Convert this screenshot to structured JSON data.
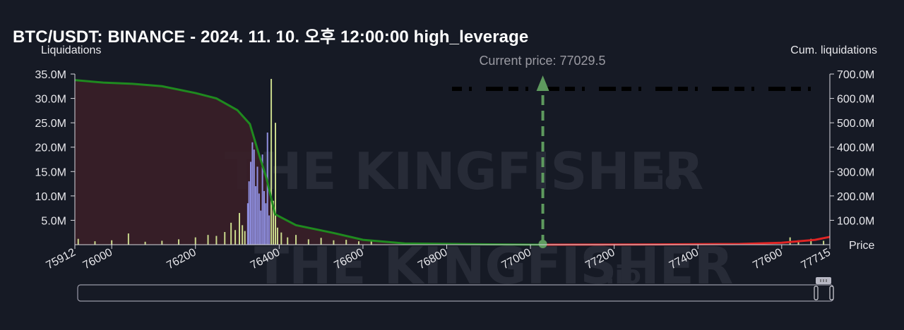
{
  "title": "BTC/USDT: BINANCE - 2024. 11. 10. 오후 12:00:00 high_leverage",
  "watermark": {
    "main": "THE KINGFISHER",
    "suffix": ".io"
  },
  "colors": {
    "background": "#161a25",
    "cum_long_line": "#1f8a1f",
    "cum_long_fill": "#3a1f28",
    "cum_short_line": "#e02424",
    "bars_low": "#c9d98c",
    "bars_high": "#8f8fe0",
    "current_price_marker": "#5e9a5e",
    "current_price_label": "#9a9aa2"
  },
  "chart_data": {
    "type": "bar",
    "ylabel": "Liquidations",
    "y2label": "Cum. liquidations",
    "xlabel": "Price",
    "xlim": [
      75912,
      77715
    ],
    "ylim": [
      0,
      35000000
    ],
    "y2lim": [
      0,
      700000000
    ],
    "yticks": [
      {
        "v": 5000000,
        "label": "5.0M"
      },
      {
        "v": 10000000,
        "label": "10.0M"
      },
      {
        "v": 15000000,
        "label": "15.0M"
      },
      {
        "v": 20000000,
        "label": "20.0M"
      },
      {
        "v": 25000000,
        "label": "25.0M"
      },
      {
        "v": 30000000,
        "label": "30.0M"
      },
      {
        "v": 35000000,
        "label": "35.0M"
      }
    ],
    "y2ticks": [
      {
        "v": 100000000,
        "label": "100.0M"
      },
      {
        "v": 200000000,
        "label": "200.0M"
      },
      {
        "v": 300000000,
        "label": "300.0M"
      },
      {
        "v": 400000000,
        "label": "400.0M"
      },
      {
        "v": 500000000,
        "label": "500.0M"
      },
      {
        "v": 600000000,
        "label": "600.0M"
      },
      {
        "v": 700000000,
        "label": "700.0M"
      }
    ],
    "xticks": [
      {
        "v": 75912,
        "label": "75912"
      },
      {
        "v": 76000,
        "label": "76000"
      },
      {
        "v": 76200,
        "label": "76200"
      },
      {
        "v": 76400,
        "label": "76400"
      },
      {
        "v": 76600,
        "label": "76600"
      },
      {
        "v": 76800,
        "label": "76800"
      },
      {
        "v": 77000,
        "label": "77000"
      },
      {
        "v": 77200,
        "label": "77200"
      },
      {
        "v": 77400,
        "label": "77400"
      },
      {
        "v": 77600,
        "label": "77600"
      },
      {
        "v": 77715,
        "label": "77715"
      }
    ],
    "current_price": 77029.5,
    "current_price_label": "Current price: 77029.5",
    "bars": [
      {
        "x": 75920,
        "y": 1200000
      },
      {
        "x": 75960,
        "y": 700000
      },
      {
        "x": 76000,
        "y": 900000
      },
      {
        "x": 76040,
        "y": 2300000
      },
      {
        "x": 76080,
        "y": 600000
      },
      {
        "x": 76120,
        "y": 800000
      },
      {
        "x": 76160,
        "y": 1100000
      },
      {
        "x": 76200,
        "y": 1500000
      },
      {
        "x": 76230,
        "y": 2000000
      },
      {
        "x": 76250,
        "y": 1800000
      },
      {
        "x": 76270,
        "y": 2600000
      },
      {
        "x": 76285,
        "y": 4500000
      },
      {
        "x": 76295,
        "y": 3000000
      },
      {
        "x": 76305,
        "y": 6500000
      },
      {
        "x": 76312,
        "y": 4000000
      },
      {
        "x": 76318,
        "y": 2800000
      },
      {
        "x": 76325,
        "y": 8500000
      },
      {
        "x": 76328,
        "y": 13000000
      },
      {
        "x": 76332,
        "y": 17000000
      },
      {
        "x": 76336,
        "y": 21000000
      },
      {
        "x": 76340,
        "y": 19500000
      },
      {
        "x": 76344,
        "y": 12000000
      },
      {
        "x": 76348,
        "y": 16000000
      },
      {
        "x": 76352,
        "y": 10500000
      },
      {
        "x": 76356,
        "y": 7000000
      },
      {
        "x": 76360,
        "y": 18500000
      },
      {
        "x": 76364,
        "y": 11000000
      },
      {
        "x": 76368,
        "y": 8500000
      },
      {
        "x": 76372,
        "y": 23000000
      },
      {
        "x": 76376,
        "y": 6000000
      },
      {
        "x": 76381,
        "y": 34000000
      },
      {
        "x": 76386,
        "y": 9000000
      },
      {
        "x": 76391,
        "y": 25000000
      },
      {
        "x": 76396,
        "y": 3500000
      },
      {
        "x": 76405,
        "y": 2500000
      },
      {
        "x": 76420,
        "y": 1500000
      },
      {
        "x": 76440,
        "y": 2000000
      },
      {
        "x": 76470,
        "y": 1100000
      },
      {
        "x": 76500,
        "y": 1400000
      },
      {
        "x": 76530,
        "y": 900000
      },
      {
        "x": 76560,
        "y": 1000000
      },
      {
        "x": 76590,
        "y": 700000
      },
      {
        "x": 76620,
        "y": 900000
      },
      {
        "x": 77620,
        "y": 1500000
      },
      {
        "x": 77640,
        "y": 900000
      },
      {
        "x": 77670,
        "y": 1200000
      },
      {
        "x": 77700,
        "y": 800000
      }
    ],
    "cum_long": [
      {
        "x": 75912,
        "y": 675000000
      },
      {
        "x": 75980,
        "y": 665000000
      },
      {
        "x": 76050,
        "y": 660000000
      },
      {
        "x": 76120,
        "y": 650000000
      },
      {
        "x": 76200,
        "y": 622000000
      },
      {
        "x": 76250,
        "y": 600000000
      },
      {
        "x": 76300,
        "y": 552000000
      },
      {
        "x": 76330,
        "y": 495000000
      },
      {
        "x": 76350,
        "y": 380000000
      },
      {
        "x": 76370,
        "y": 270000000
      },
      {
        "x": 76390,
        "y": 125000000
      },
      {
        "x": 76440,
        "y": 80000000
      },
      {
        "x": 76530,
        "y": 48000000
      },
      {
        "x": 76600,
        "y": 20000000
      },
      {
        "x": 76700,
        "y": 5000000
      },
      {
        "x": 76900,
        "y": 1500000
      },
      {
        "x": 77029.5,
        "y": 0
      }
    ],
    "cum_short": [
      {
        "x": 77029.5,
        "y": 0
      },
      {
        "x": 77300,
        "y": 1000000
      },
      {
        "x": 77500,
        "y": 3000000
      },
      {
        "x": 77600,
        "y": 8000000
      },
      {
        "x": 77680,
        "y": 20000000
      },
      {
        "x": 77715,
        "y": 32000000
      }
    ]
  }
}
